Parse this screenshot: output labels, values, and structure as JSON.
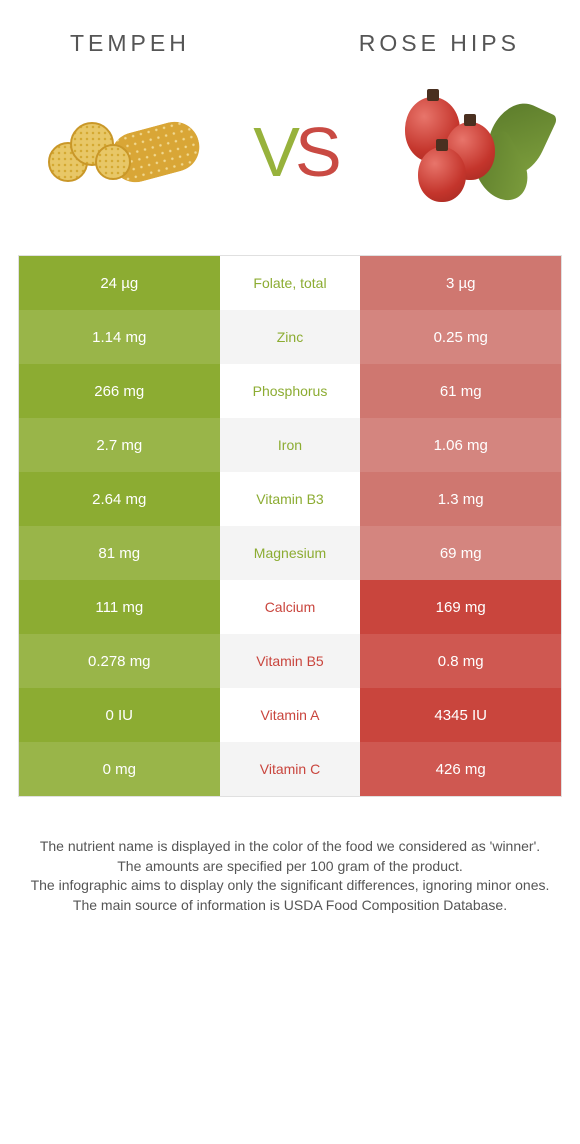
{
  "foodA": {
    "name": "TEMPEH"
  },
  "foodB": {
    "name": "ROSE HIPS"
  },
  "colors": {
    "a_strong": "#8cac32",
    "a_weak": "#97b23c",
    "b_strong": "#c9453d",
    "b_weak": "#cf7770",
    "label_a": "#8cac32",
    "label_b": "#c9453d",
    "left_odd": "#8cac32",
    "left_even": "#99b549",
    "right_odd": "#cf7770",
    "right_even": "#d4857f",
    "right_strong_odd": "#c9453d",
    "right_strong_even": "#cf5851"
  },
  "rows": [
    {
      "label": "Folate, total",
      "a": "24 µg",
      "b": "3 µg",
      "winner": "a"
    },
    {
      "label": "Zinc",
      "a": "1.14 mg",
      "b": "0.25 mg",
      "winner": "a"
    },
    {
      "label": "Phosphorus",
      "a": "266 mg",
      "b": "61 mg",
      "winner": "a"
    },
    {
      "label": "Iron",
      "a": "2.7 mg",
      "b": "1.06 mg",
      "winner": "a"
    },
    {
      "label": "Vitamin B3",
      "a": "2.64 mg",
      "b": "1.3 mg",
      "winner": "a"
    },
    {
      "label": "Magnesium",
      "a": "81 mg",
      "b": "69 mg",
      "winner": "a"
    },
    {
      "label": "Calcium",
      "a": "111 mg",
      "b": "169 mg",
      "winner": "b"
    },
    {
      "label": "Vitamin B5",
      "a": "0.278 mg",
      "b": "0.8 mg",
      "winner": "b"
    },
    {
      "label": "Vitamin A",
      "a": "0 IU",
      "b": "4345 IU",
      "winner": "b"
    },
    {
      "label": "Vitamin C",
      "a": "0 mg",
      "b": "426 mg",
      "winner": "b"
    }
  ],
  "footer": [
    "The nutrient name is displayed in the color of the food we considered as 'winner'.",
    "The amounts are specified per 100 gram of the product.",
    "The infographic aims to display only the significant differences, ignoring minor ones.",
    "The main source of information is USDA Food Composition Database."
  ]
}
